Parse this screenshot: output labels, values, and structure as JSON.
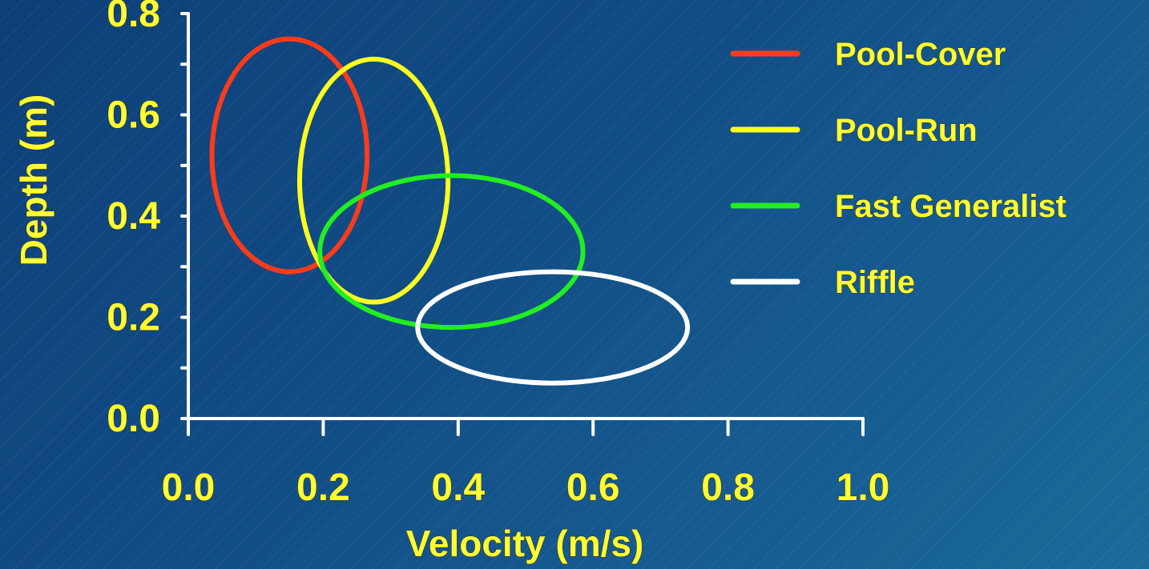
{
  "chart_data": {
    "type": "scatter",
    "title": "",
    "xlabel": "Velocity (m/s)",
    "ylabel": "Depth (m)",
    "xlim": [
      0.0,
      1.0
    ],
    "ylim": [
      0.0,
      0.8
    ],
    "x_ticks": [
      "0.0",
      "0.2",
      "0.4",
      "0.6",
      "0.8",
      "1.0"
    ],
    "y_ticks": [
      "0.0",
      "0.2",
      "0.4",
      "0.6",
      "0.8"
    ],
    "grid": false,
    "legend_position": "top-right",
    "series": [
      {
        "name": "Pool-Cover",
        "color": "#ff3b1a",
        "shape": "ellipse",
        "center": {
          "velocity": 0.15,
          "depth": 0.52
        },
        "radius": {
          "velocity": 0.115,
          "depth": 0.23
        }
      },
      {
        "name": "Pool-Run",
        "color": "#ffff22",
        "shape": "ellipse",
        "center": {
          "velocity": 0.275,
          "depth": 0.47
        },
        "radius": {
          "velocity": 0.11,
          "depth": 0.24
        }
      },
      {
        "name": "Fast Generalist",
        "color": "#22ee22",
        "shape": "ellipse",
        "center": {
          "velocity": 0.39,
          "depth": 0.33
        },
        "radius": {
          "velocity": 0.195,
          "depth": 0.15
        }
      },
      {
        "name": "Riffle",
        "color": "#ffffff",
        "shape": "ellipse",
        "center": {
          "velocity": 0.54,
          "depth": 0.18
        },
        "radius": {
          "velocity": 0.2,
          "depth": 0.11
        }
      }
    ]
  }
}
